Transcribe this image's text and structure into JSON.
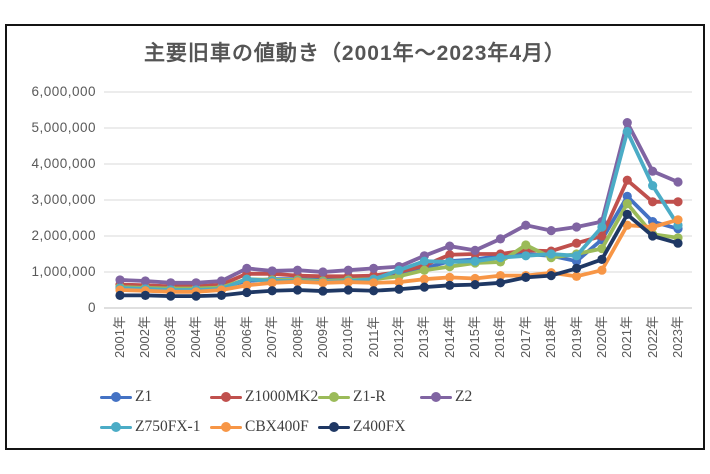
{
  "window": {
    "background_color": "#ffffff",
    "frame_border_color": "#141414",
    "text_color": "#595959",
    "grid_color": "#d9d9d9"
  },
  "chart_data": {
    "type": "line",
    "title": "主要旧車の値動き（2001年～2023年4月）",
    "xlabel": "",
    "ylabel": "",
    "grid": true,
    "legend_position": "bottom",
    "ylim": [
      0,
      6000000
    ],
    "y_axis": {
      "min": 0,
      "max": 6000000,
      "step": 1000000,
      "tick_labels": [
        "0",
        "1,000,000",
        "2,000,000",
        "3,000,000",
        "4,000,000",
        "5,000,000",
        "6,000,000"
      ]
    },
    "categories": [
      "2001年",
      "2002年",
      "2003年",
      "2004年",
      "2005年",
      "2006年",
      "2007年",
      "2008年",
      "2009年",
      "2010年",
      "2011年",
      "2012年",
      "2013年",
      "2014年",
      "2015年",
      "2016年",
      "2017年",
      "2018年",
      "2019年",
      "2020年",
      "2021年",
      "2022年",
      "2023年"
    ],
    "series": [
      {
        "name": "Z1",
        "color": "#4472C4",
        "values": [
          600000,
          580000,
          550000,
          550000,
          580000,
          750000,
          800000,
          800000,
          780000,
          800000,
          820000,
          900000,
          1100000,
          1300000,
          1350000,
          1450000,
          1500000,
          1450000,
          1300000,
          1900000,
          3100000,
          2400000,
          2200000
        ]
      },
      {
        "name": "Z1000MK2",
        "color": "#C0504D",
        "values": [
          650000,
          630000,
          600000,
          600000,
          650000,
          950000,
          950000,
          900000,
          880000,
          880000,
          900000,
          1000000,
          1180000,
          1480000,
          1500000,
          1500000,
          1600000,
          1580000,
          1800000,
          2000000,
          3550000,
          2950000,
          2950000
        ]
      },
      {
        "name": "Z1-R",
        "color": "#9BBB59",
        "values": [
          580000,
          560000,
          540000,
          540000,
          570000,
          800000,
          780000,
          780000,
          750000,
          780000,
          800000,
          880000,
          1050000,
          1150000,
          1250000,
          1280000,
          1750000,
          1400000,
          1500000,
          1650000,
          2900000,
          2050000,
          1950000
        ]
      },
      {
        "name": "Z2",
        "color": "#8064A2",
        "values": [
          780000,
          750000,
          700000,
          700000,
          750000,
          1100000,
          1030000,
          1050000,
          1000000,
          1050000,
          1100000,
          1150000,
          1450000,
          1720000,
          1600000,
          1920000,
          2300000,
          2150000,
          2250000,
          2400000,
          5150000,
          3800000,
          3500000
        ]
      },
      {
        "name": "Z750FX-1",
        "color": "#4BACC6",
        "values": [
          550000,
          530000,
          500000,
          500000,
          530000,
          800000,
          750000,
          750000,
          720000,
          750000,
          800000,
          1050000,
          1300000,
          1280000,
          1300000,
          1400000,
          1450000,
          1500000,
          1450000,
          2250000,
          4900000,
          3400000,
          2300000
        ]
      },
      {
        "name": "CBX400F",
        "color": "#F79646",
        "values": [
          500000,
          480000,
          450000,
          450000,
          500000,
          630000,
          700000,
          730000,
          700000,
          720000,
          700000,
          720000,
          800000,
          850000,
          820000,
          900000,
          900000,
          980000,
          880000,
          1050000,
          2300000,
          2250000,
          2450000
        ]
      },
      {
        "name": "Z400FX",
        "color": "#1F3864",
        "values": [
          350000,
          350000,
          330000,
          330000,
          350000,
          430000,
          480000,
          500000,
          470000,
          500000,
          480000,
          520000,
          580000,
          630000,
          650000,
          700000,
          850000,
          900000,
          1100000,
          1350000,
          2600000,
          2000000,
          1800000
        ]
      }
    ]
  }
}
